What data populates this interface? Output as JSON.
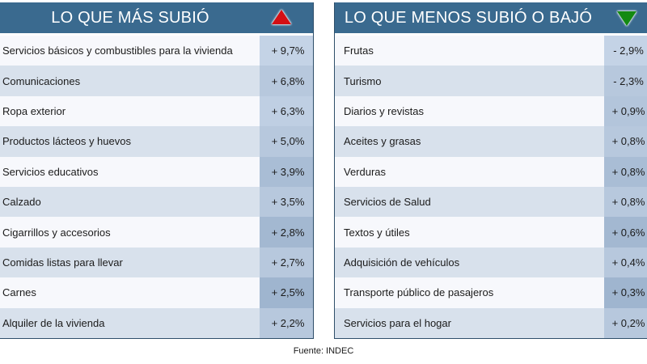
{
  "left_panel": {
    "title": "LO QUE MÁS SUBIÓ",
    "icon": "triangle-up-icon",
    "icon_color": "#d40f14",
    "rows": [
      {
        "label": "Servicios básicos y combustibles para la vivienda",
        "value": "+ 9,7%",
        "value_bg": "#c4d3e6"
      },
      {
        "label": "Comunicaciones",
        "value": "+ 6,8%",
        "value_bg": "#b7c8dd"
      },
      {
        "label": "Ropa exterior",
        "value": "+ 6,3%",
        "value_bg": "#bfcfe3"
      },
      {
        "label": "Productos lácteos y huevos",
        "value": "+ 5,0%",
        "value_bg": "#b7c8dd"
      },
      {
        "label": "Servicios educativos",
        "value": "+ 3,9%",
        "value_bg": "#a9bdd5"
      },
      {
        "label": "Calzado",
        "value": "+ 3,5%",
        "value_bg": "#b7c8dd"
      },
      {
        "label": "Cigarrillos y accesorios",
        "value": "+ 2,8%",
        "value_bg": "#a3b8d1"
      },
      {
        "label": "Comidas listas para llevar",
        "value": "+ 2,7%",
        "value_bg": "#b7c8dd"
      },
      {
        "label": "Carnes",
        "value": "+ 2,5%",
        "value_bg": "#9fb5cf"
      },
      {
        "label": "Alquiler de la vivienda",
        "value": "+ 2,2%",
        "value_bg": "#b7c8dd"
      }
    ]
  },
  "right_panel": {
    "title": "LO QUE MENOS SUBIÓ O BAJÓ",
    "icon": "triangle-down-icon",
    "icon_color": "#148a12",
    "rows": [
      {
        "label": "Frutas",
        "value": "- 2,9%",
        "value_bg": "#c4d3e6"
      },
      {
        "label": "Turismo",
        "value": "- 2,3%",
        "value_bg": "#b7c8dd"
      },
      {
        "label": "Diarios y revistas",
        "value": "+ 0,9%",
        "value_bg": "#b3c5db"
      },
      {
        "label": "Aceites y grasas",
        "value": "+ 0,8%",
        "value_bg": "#b7c8dd"
      },
      {
        "label": "Verduras",
        "value": "+ 0,8%",
        "value_bg": "#a9bdd5"
      },
      {
        "label": "Servicios de Salud",
        "value": "+ 0,8%",
        "value_bg": "#b7c8dd"
      },
      {
        "label": "Textos y útiles",
        "value": "+ 0,6%",
        "value_bg": "#a3b8d1"
      },
      {
        "label": "Adquisición de vehículos",
        "value": "+ 0,4%",
        "value_bg": "#b7c8dd"
      },
      {
        "label": "Transporte público de pasajeros",
        "value": "+ 0,3%",
        "value_bg": "#9fb5cf"
      },
      {
        "label": "Servicios para el hogar",
        "value": "+ 0,2%",
        "value_bg": "#b7c8dd"
      }
    ]
  },
  "footer": {
    "source": "Fuente: INDEC"
  },
  "colors": {
    "header_bg": "#3a6a8f",
    "row_light": "#f7f8fc",
    "row_dark": "#d8e1ec"
  }
}
